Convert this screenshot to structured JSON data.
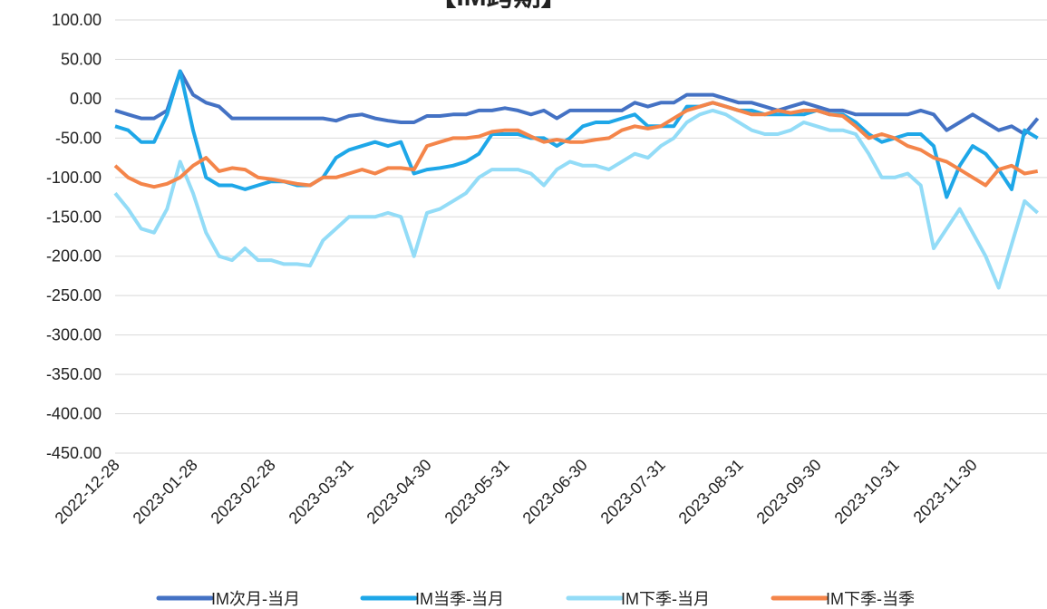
{
  "chart_data": {
    "type": "line",
    "title": "【IM跨期】",
    "categories": [
      "2022-12-28",
      null,
      null,
      null,
      null,
      null,
      "2023-01-28",
      null,
      null,
      null,
      null,
      null,
      "2023-02-28",
      null,
      null,
      null,
      null,
      null,
      "2023-03-31",
      null,
      null,
      null,
      null,
      null,
      "2023-04-30",
      null,
      null,
      null,
      null,
      null,
      "2023-05-31",
      null,
      null,
      null,
      null,
      null,
      "2023-06-30",
      null,
      null,
      null,
      null,
      null,
      "2023-07-31",
      null,
      null,
      null,
      null,
      null,
      "2023-08-31",
      null,
      null,
      null,
      null,
      null,
      "2023-09-30",
      null,
      null,
      null,
      null,
      null,
      "2023-10-31",
      null,
      null,
      null,
      null,
      null,
      "2023-11-30",
      null,
      null,
      null,
      null,
      null
    ],
    "series": [
      {
        "name": "IM次月-当月",
        "color": "#4472c4",
        "values": [
          -15,
          -20,
          -25,
          -25,
          -15,
          35,
          5,
          -5,
          -10,
          -25,
          -25,
          -25,
          -25,
          -25,
          -25,
          -25,
          -25,
          -28,
          -22,
          -20,
          -25,
          -28,
          -30,
          -30,
          -22,
          -22,
          -20,
          -20,
          -15,
          -15,
          -12,
          -15,
          -20,
          -15,
          -25,
          -15,
          -15,
          -15,
          -15,
          -15,
          -5,
          -10,
          -5,
          -5,
          5,
          5,
          5,
          0,
          -5,
          -5,
          -10,
          -15,
          -10,
          -5,
          -10,
          -15,
          -15,
          -20,
          -20,
          -20,
          -20,
          -20,
          -15,
          -20,
          -40,
          -30,
          -20,
          -30,
          -40,
          -35,
          -45,
          -25
        ]
      },
      {
        "name": "IM当季-当月",
        "color": "#1ea7e8",
        "values": [
          -35,
          -40,
          -55,
          -55,
          -20,
          35,
          -40,
          -100,
          -110,
          -110,
          -115,
          -110,
          -105,
          -105,
          -110,
          -110,
          -100,
          -75,
          -65,
          -60,
          -55,
          -60,
          -55,
          -95,
          -90,
          -88,
          -85,
          -80,
          -70,
          -45,
          -45,
          -45,
          -50,
          -50,
          -60,
          -50,
          -35,
          -30,
          -30,
          -25,
          -20,
          -35,
          -35,
          -35,
          -10,
          -10,
          -5,
          -10,
          -15,
          -15,
          -20,
          -20,
          -20,
          -20,
          -15,
          -20,
          -20,
          -30,
          -45,
          -55,
          -50,
          -45,
          -45,
          -60,
          -125,
          -85,
          -60,
          -70,
          -90,
          -115,
          -40,
          -50
        ]
      },
      {
        "name": "IM下季-当月",
        "color": "#93dcf7",
        "values": [
          -120,
          -140,
          -165,
          -170,
          -140,
          -80,
          -120,
          -170,
          -200,
          -205,
          -190,
          -205,
          -205,
          -210,
          -210,
          -212,
          -180,
          -165,
          -150,
          -150,
          -150,
          -145,
          -150,
          -200,
          -145,
          -140,
          -130,
          -120,
          -100,
          -90,
          -90,
          -90,
          -95,
          -110,
          -90,
          -80,
          -85,
          -85,
          -90,
          -80,
          -70,
          -75,
          -60,
          -50,
          -30,
          -20,
          -15,
          -20,
          -30,
          -40,
          -45,
          -45,
          -40,
          -30,
          -35,
          -40,
          -40,
          -45,
          -70,
          -100,
          -100,
          -95,
          -110,
          -190,
          -165,
          -140,
          -170,
          -200,
          -240,
          -185,
          -130,
          -145
        ]
      },
      {
        "name": "IM下季-当季",
        "color": "#f4854a",
        "values": [
          -85,
          -100,
          -108,
          -112,
          -108,
          -100,
          -85,
          -75,
          -92,
          -88,
          -90,
          -100,
          -102,
          -105,
          -108,
          -110,
          -100,
          -100,
          -95,
          -90,
          -95,
          -88,
          -88,
          -90,
          -60,
          -55,
          -50,
          -50,
          -48,
          -42,
          -40,
          -40,
          -48,
          -55,
          -52,
          -55,
          -55,
          -52,
          -50,
          -40,
          -35,
          -38,
          -35,
          -25,
          -15,
          -10,
          -5,
          -10,
          -15,
          -20,
          -20,
          -15,
          -18,
          -15,
          -15,
          -20,
          -22,
          -35,
          -50,
          -45,
          -50,
          -60,
          -65,
          -75,
          -80,
          -90,
          -100,
          -110,
          -90,
          -85,
          -95,
          -92
        ]
      }
    ],
    "ylim": [
      -450,
      100
    ],
    "yticks": [
      {
        "value": -450,
        "label": "-450.00"
      },
      {
        "value": -400,
        "label": "-400.00"
      },
      {
        "value": -350,
        "label": "-350.00"
      },
      {
        "value": -300,
        "label": "-300.00"
      },
      {
        "value": -250,
        "label": "-250.00"
      },
      {
        "value": -200,
        "label": "-200.00"
      },
      {
        "value": -150,
        "label": "-150.00"
      },
      {
        "value": -100,
        "label": "-100.00"
      },
      {
        "value": -50,
        "label": "-50.00"
      },
      {
        "value": 0,
        "label": "0.00"
      },
      {
        "value": 50,
        "label": "50.00"
      },
      {
        "value": 100,
        "label": "100.00"
      }
    ],
    "grid": true,
    "legend": "bottom"
  }
}
